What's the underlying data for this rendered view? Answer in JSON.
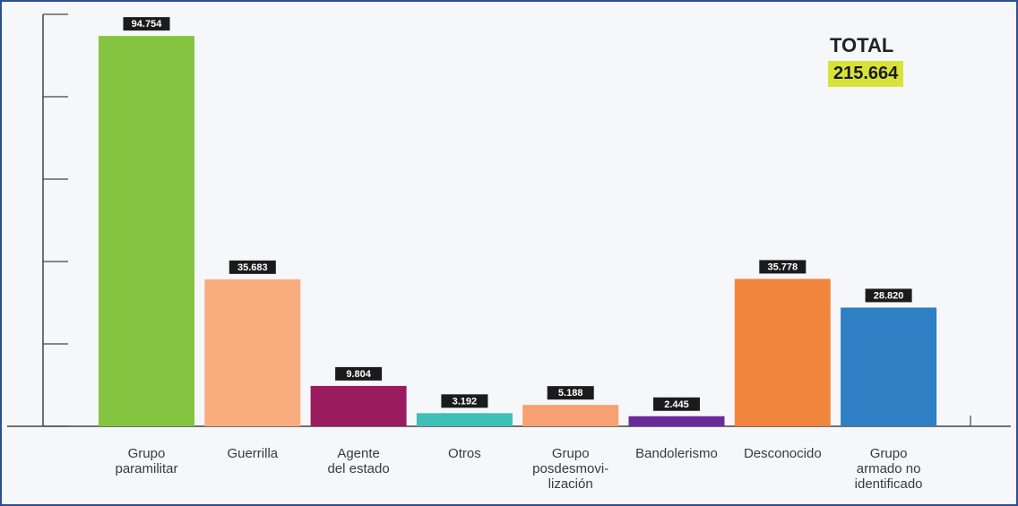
{
  "total": {
    "label": "TOTAL",
    "value": "215.664"
  },
  "chart_data": {
    "type": "bar",
    "title": "",
    "xlabel": "",
    "ylabel": "",
    "ylim": [
      0,
      100000
    ],
    "grid": false,
    "categories": [
      "Grupo paramilitar",
      "Guerrilla",
      "Agente del estado",
      "Otros",
      "Grupo posdesmovi-lización",
      "Bandolerismo",
      "Desconocido",
      "Grupo armado no identificado"
    ],
    "category_lines": [
      [
        "Grupo",
        "paramilitar"
      ],
      [
        "Guerrilla"
      ],
      [
        "Agente",
        "del estado"
      ],
      [
        "Otros"
      ],
      [
        "Grupo",
        "posdesmovi-",
        "lización"
      ],
      [
        "Bandolerismo"
      ],
      [
        "Desconocido"
      ],
      [
        "Grupo",
        "armado no",
        "identificado"
      ]
    ],
    "values": [
      94754,
      35683,
      9804,
      3192,
      5188,
      2445,
      35778,
      28820
    ],
    "value_labels": [
      "94.754",
      "35.683",
      "9.804",
      "3.192",
      "5.188",
      "2.445",
      "35.778",
      "28.820"
    ],
    "colors": [
      "#84c441",
      "#f9ad7f",
      "#9b1b5f",
      "#3fbfb8",
      "#f7a172",
      "#6b2a9b",
      "#f2853d",
      "#2f7fc4"
    ]
  }
}
